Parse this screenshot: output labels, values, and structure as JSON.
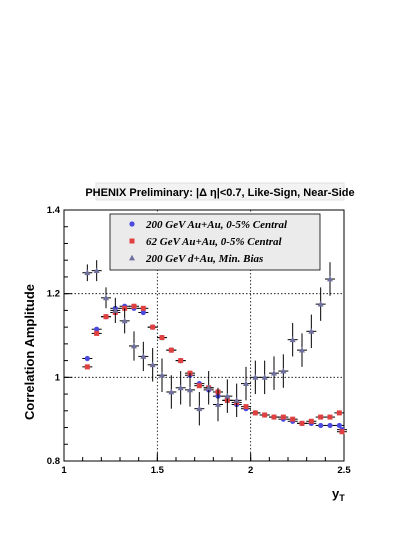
{
  "chart_data": {
    "type": "scatter",
    "title": "PHENIX Preliminary: |Δ η|<0.7, Like-Sign, Near-Side",
    "xlabel": "y",
    "xlabel_sub": "T",
    "ylabel": "Correlation Amplitude",
    "xlim": [
      1,
      2.5
    ],
    "ylim": [
      0.8,
      1.4
    ],
    "xticks": [
      {
        "v": 1,
        "label": "1"
      },
      {
        "v": 1.5,
        "label": "1.5"
      },
      {
        "v": 2,
        "label": "2"
      },
      {
        "v": 2.5,
        "label": "2.5"
      }
    ],
    "yticks": [
      {
        "v": 0.8,
        "label": "0.8"
      },
      {
        "v": 1.0,
        "label": "1"
      },
      {
        "v": 1.2,
        "label": "1.2"
      },
      {
        "v": 1.4,
        "label": "1.4"
      }
    ],
    "grid": {
      "x": [
        1.5,
        2.0
      ],
      "y": [
        1.0,
        1.2
      ]
    },
    "legend_position": "top",
    "series": [
      {
        "name": "200 GeV Au+Au, 0-5% Central",
        "marker": "circle",
        "color": "#4a4ae0",
        "points": [
          [
            1.125,
            1.045,
            0.005
          ],
          [
            1.175,
            1.115,
            0.005
          ],
          [
            1.225,
            1.145,
            0.005
          ],
          [
            1.275,
            1.165,
            0.005
          ],
          [
            1.325,
            1.17,
            0.005
          ],
          [
            1.375,
            1.165,
            0.005
          ],
          [
            1.425,
            1.155,
            0.005
          ],
          [
            1.475,
            1.12,
            0.005
          ],
          [
            1.525,
            1.095,
            0.005
          ],
          [
            1.575,
            1.065,
            0.005
          ],
          [
            1.625,
            1.04,
            0.005
          ],
          [
            1.675,
            1.005,
            0.005
          ],
          [
            1.725,
            0.985,
            0.005
          ],
          [
            1.775,
            0.97,
            0.005
          ],
          [
            1.825,
            0.955,
            0.005
          ],
          [
            1.875,
            0.945,
            0.005
          ],
          [
            1.925,
            0.935,
            0.005
          ],
          [
            1.975,
            0.925,
            0.005
          ],
          [
            2.025,
            0.915,
            0.005
          ],
          [
            2.075,
            0.91,
            0.005
          ],
          [
            2.125,
            0.905,
            0.005
          ],
          [
            2.175,
            0.9,
            0.005
          ],
          [
            2.225,
            0.895,
            0.005
          ],
          [
            2.275,
            0.89,
            0.005
          ],
          [
            2.325,
            0.89,
            0.005
          ],
          [
            2.375,
            0.885,
            0.005
          ],
          [
            2.425,
            0.885,
            0.005
          ],
          [
            2.475,
            0.885,
            0.005
          ],
          [
            2.525,
            0.875,
            0.005
          ]
        ]
      },
      {
        "name": "62 GeV Au+Au, 0-5% Central",
        "marker": "square",
        "color": "#e04040",
        "points": [
          [
            1.125,
            1.025,
            0.005
          ],
          [
            1.175,
            1.105,
            0.005
          ],
          [
            1.225,
            1.145,
            0.005
          ],
          [
            1.275,
            1.155,
            0.005
          ],
          [
            1.325,
            1.165,
            0.005
          ],
          [
            1.375,
            1.17,
            0.005
          ],
          [
            1.425,
            1.165,
            0.005
          ],
          [
            1.475,
            1.12,
            0.005
          ],
          [
            1.525,
            1.095,
            0.005
          ],
          [
            1.575,
            1.065,
            0.005
          ],
          [
            1.625,
            1.04,
            0.005
          ],
          [
            1.675,
            1.01,
            0.005
          ],
          [
            1.725,
            0.98,
            0.005
          ],
          [
            1.775,
            0.975,
            0.005
          ],
          [
            1.825,
            0.965,
            0.005
          ],
          [
            1.875,
            0.945,
            0.005
          ],
          [
            1.925,
            0.94,
            0.005
          ],
          [
            1.975,
            0.93,
            0.005
          ],
          [
            2.025,
            0.915,
            0.005
          ],
          [
            2.075,
            0.91,
            0.005
          ],
          [
            2.125,
            0.905,
            0.005
          ],
          [
            2.175,
            0.905,
            0.005
          ],
          [
            2.225,
            0.9,
            0.005
          ],
          [
            2.275,
            0.89,
            0.005
          ],
          [
            2.325,
            0.895,
            0.005
          ],
          [
            2.375,
            0.905,
            0.005
          ],
          [
            2.425,
            0.905,
            0.005
          ],
          [
            2.475,
            0.915,
            0.005
          ],
          [
            2.525,
            0.87,
            0.005
          ]
        ]
      },
      {
        "name": "200 GeV d+Au, Min. Bias",
        "marker": "triangle",
        "color": "#7070a0",
        "points": [
          [
            1.125,
            1.25,
            0.02
          ],
          [
            1.175,
            1.255,
            0.025
          ],
          [
            1.225,
            1.19,
            0.025
          ],
          [
            1.275,
            1.16,
            0.03
          ],
          [
            1.325,
            1.135,
            0.03
          ],
          [
            1.375,
            1.075,
            0.035
          ],
          [
            1.425,
            1.05,
            0.035
          ],
          [
            1.475,
            1.03,
            0.04
          ],
          [
            1.525,
            1.005,
            0.04
          ],
          [
            1.575,
            0.965,
            0.04
          ],
          [
            1.625,
            0.975,
            0.04
          ],
          [
            1.675,
            0.97,
            0.04
          ],
          [
            1.725,
            0.925,
            0.04
          ],
          [
            1.775,
            0.975,
            0.04
          ],
          [
            1.825,
            0.935,
            0.04
          ],
          [
            1.875,
            0.955,
            0.04
          ],
          [
            1.925,
            0.945,
            0.04
          ],
          [
            1.975,
            0.985,
            0.04
          ],
          [
            2.025,
            1.0,
            0.04
          ],
          [
            2.075,
            1.0,
            0.04
          ],
          [
            2.125,
            1.01,
            0.04
          ],
          [
            2.175,
            1.015,
            0.04
          ],
          [
            2.225,
            1.09,
            0.04
          ],
          [
            2.275,
            1.065,
            0.04
          ],
          [
            2.325,
            1.11,
            0.04
          ],
          [
            2.375,
            1.175,
            0.04
          ],
          [
            2.425,
            1.235,
            0.04
          ]
        ]
      }
    ]
  }
}
